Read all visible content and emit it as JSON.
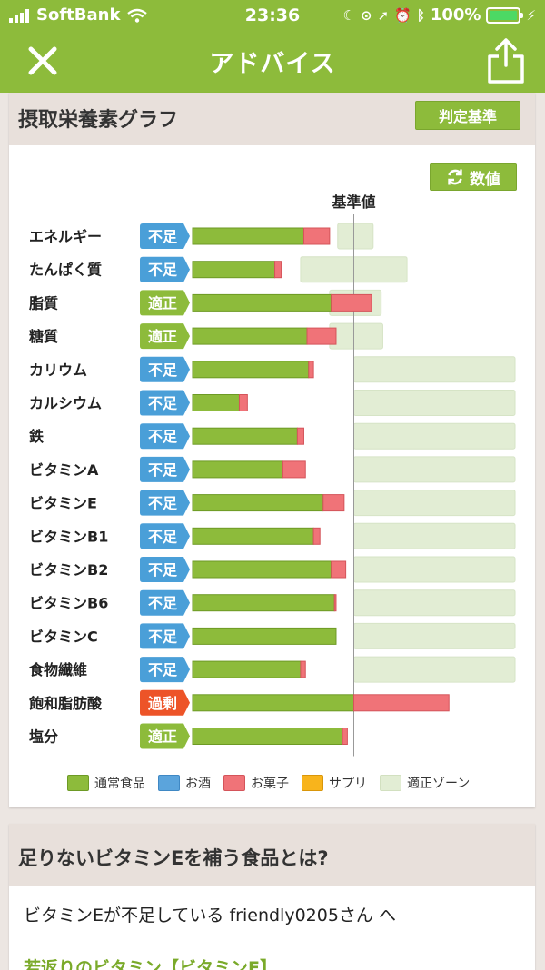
{
  "status": {
    "carrier": "SoftBank",
    "time": "23:36",
    "battery": "100%"
  },
  "nav": {
    "title": "アドバイス",
    "close_icon": "close-icon",
    "share_icon": "share-icon"
  },
  "graph_card": {
    "title": "摂取栄養素グラフ",
    "criteria_button": "判定基準",
    "values_button": "数値",
    "reference_label": "基準値"
  },
  "colors": {
    "brand": "#8dbb3b",
    "normal_food": "#8dbb3b",
    "alcohol": "#5ba4dc",
    "sweets": "#f07378",
    "supplement": "#f8b41c",
    "zone": "#e2edd4",
    "badge_insufficient": "#4a9fd8",
    "badge_adequate": "#8dbb3b",
    "badge_excess": "#ed5428"
  },
  "chart_data": {
    "type": "bar",
    "orientation": "horizontal",
    "stacked": true,
    "units": "percent of reference value",
    "reference_value": 100,
    "categories": [
      "エネルギー",
      "たんぱく質",
      "脂質",
      "糖質",
      "カリウム",
      "カルシウム",
      "鉄",
      "ビタミンA",
      "ビタミンE",
      "ビタミンB1",
      "ビタミンB2",
      "ビタミンB6",
      "ビタミンC",
      "食物繊維",
      "飽和脂肪酸",
      "塩分"
    ],
    "status": [
      "不足",
      "不足",
      "適正",
      "適正",
      "不足",
      "不足",
      "不足",
      "不足",
      "不足",
      "不足",
      "不足",
      "不足",
      "不足",
      "不足",
      "過剰",
      "適正"
    ],
    "series": [
      {
        "name": "通常食品",
        "values": [
          69,
          51,
          86,
          71,
          72,
          29,
          65,
          56,
          81,
          75,
          86,
          88,
          89,
          67,
          100,
          93
        ]
      },
      {
        "name": "お酒",
        "values": [
          0,
          0,
          0,
          0,
          0,
          0,
          0,
          0,
          0,
          0,
          0,
          0,
          0,
          0,
          0,
          0
        ]
      },
      {
        "name": "お菓子",
        "values": [
          16,
          4,
          25,
          18,
          3,
          5,
          4,
          14,
          13,
          4,
          9,
          1,
          0,
          3,
          59,
          3
        ]
      },
      {
        "name": "サプリ",
        "values": [
          0,
          0,
          0,
          0,
          0,
          0,
          0,
          0,
          0,
          0,
          0,
          0,
          0,
          0,
          0,
          0
        ]
      }
    ],
    "zone_range": [
      [
        -10,
        12
      ],
      [
        -33,
        33
      ],
      [
        -15,
        17
      ],
      [
        -15,
        18
      ],
      [
        0,
        101
      ],
      [
        0,
        101
      ],
      [
        0,
        101
      ],
      [
        0,
        101
      ],
      [
        0,
        101
      ],
      [
        0,
        101
      ],
      [
        0,
        101
      ],
      [
        0,
        101
      ],
      [
        0,
        101
      ],
      [
        0,
        101
      ],
      [
        0,
        0
      ],
      [
        0,
        0
      ]
    ],
    "legend": [
      "通常食品",
      "お酒",
      "お菓子",
      "サプリ",
      "適正ゾーン"
    ],
    "legend_position": "bottom"
  },
  "food_card": {
    "title": "足りないビタミンEを補う食品とは?",
    "message": "ビタミンEが不足している friendly0205さん へ",
    "link": "若返りのビタミン【ビタミンE】"
  }
}
